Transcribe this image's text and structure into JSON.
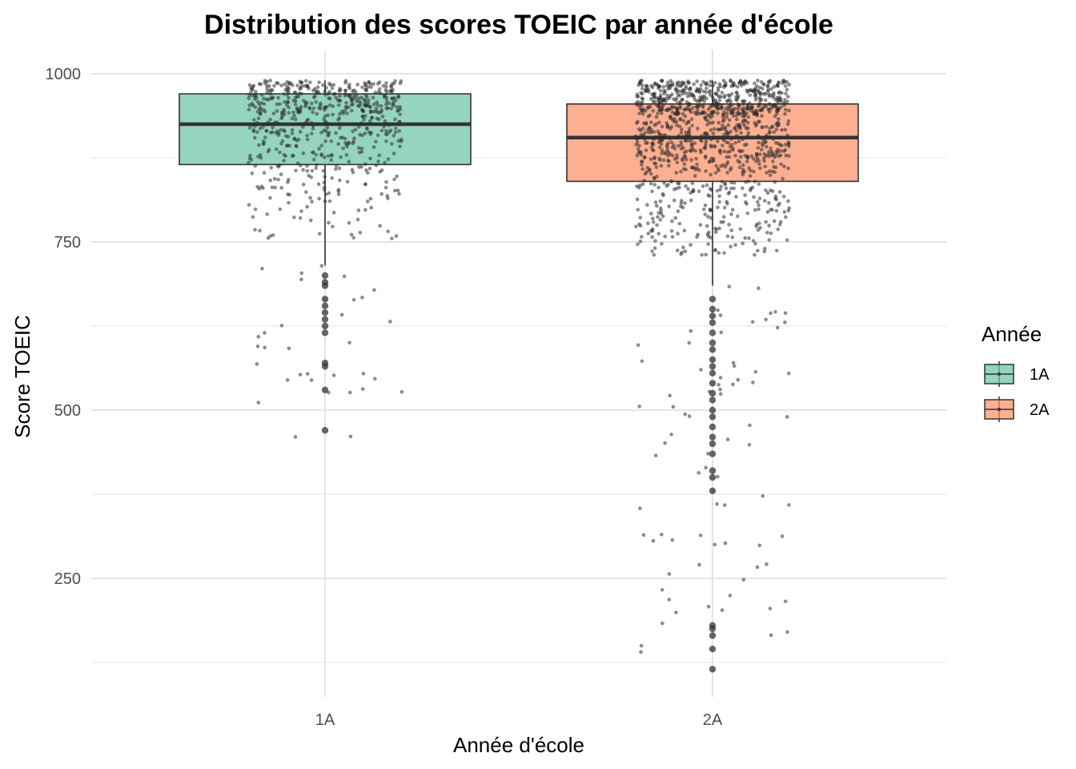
{
  "chart_data": {
    "type": "boxplot",
    "title": "Distribution des scores TOEIC par année d'école",
    "xlabel": "Année d'école",
    "ylabel": "Score TOEIC",
    "categories": [
      "1A",
      "2A"
    ],
    "ylim": [
      85,
      1015
    ],
    "yticks": [
      250,
      500,
      750,
      1000
    ],
    "grid": true,
    "legend": {
      "title": "Année",
      "position": "right",
      "entries": [
        "1A",
        "2A"
      ]
    },
    "colors": {
      "1A": "#66c2a5",
      "2A": "#fc8d62"
    },
    "boxes": [
      {
        "name": "1A",
        "q1": 865,
        "median": 925,
        "q3": 970,
        "whisker_low": 715,
        "whisker_high": 990,
        "outliers": [
          700,
          690,
          685,
          665,
          655,
          645,
          635,
          625,
          615,
          570,
          565,
          530,
          470
        ],
        "jitter_count": 650
      },
      {
        "name": "2A",
        "q1": 840,
        "median": 905,
        "q3": 955,
        "whisker_low": 685,
        "whisker_high": 990,
        "outliers": [
          665,
          650,
          640,
          630,
          615,
          600,
          590,
          575,
          565,
          555,
          540,
          525,
          515,
          500,
          490,
          475,
          460,
          450,
          435,
          410,
          400,
          380,
          180,
          175,
          165,
          145,
          115
        ],
        "jitter_count": 1250
      }
    ]
  }
}
